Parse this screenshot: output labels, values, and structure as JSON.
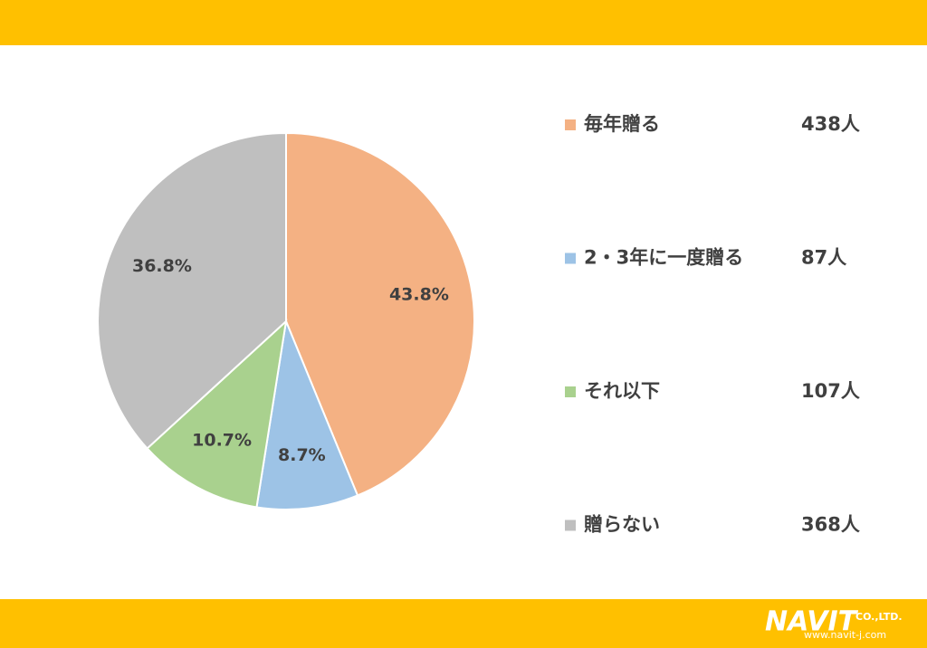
{
  "chart_data": {
    "type": "pie",
    "categories": [
      "毎年贈る",
      "2・3年に一度贈る",
      "それ以下",
      "贈らない"
    ],
    "values": [
      43.8,
      8.7,
      10.7,
      36.8
    ],
    "value_labels": [
      "43.8%",
      "8.7%",
      "10.7%",
      "36.8%"
    ],
    "colors": [
      "#f4b183",
      "#9dc3e6",
      "#a9d18e",
      "#bfbfbf"
    ],
    "legend_counts": [
      "438人",
      "87人",
      "107人",
      "368人"
    ],
    "legend": "right"
  },
  "footer": {
    "logo": "NAVIT",
    "company": "CO.,LTD.",
    "url": "www.navit-j.com"
  }
}
